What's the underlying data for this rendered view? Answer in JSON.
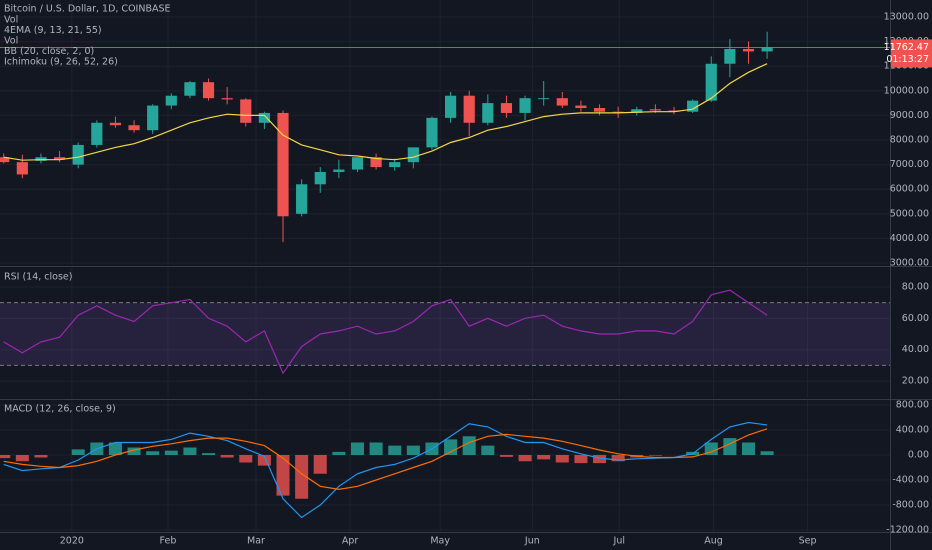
{
  "chart_data": [
    {
      "type": "candlestick",
      "title": "Bitcoin / U.S. Dollar, 1D, COINBASE",
      "indicators": [
        "Vol",
        "4EMA (9, 13, 21, 55)",
        "Vol",
        "BB (20, close, 2, 0)",
        "Ichimoku (9, 26, 52, 26)"
      ],
      "up_color": "#26a69a",
      "down_color": "#ef5350",
      "open": [
        7300,
        7100,
        7150,
        7300,
        7000,
        7800,
        8700,
        8600,
        8400,
        9400,
        9800,
        10350,
        9700,
        9650,
        8700,
        9100,
        5000,
        6200,
        6700,
        6800,
        7300,
        6900,
        7100,
        7700,
        8900,
        9800,
        8700,
        9500,
        9100,
        9700,
        9700,
        9400,
        9300,
        9150,
        9100,
        9250,
        9200,
        9150,
        9600,
        11100,
        11700,
        11600
      ],
      "high": [
        7450,
        7400,
        7450,
        7550,
        7900,
        8800,
        8950,
        8800,
        9450,
        9900,
        10400,
        10500,
        10150,
        9700,
        9150,
        9200,
        6400,
        6900,
        7200,
        7300,
        7450,
        7250,
        7700,
        8950,
        9950,
        10000,
        9850,
        9800,
        9800,
        10400,
        9950,
        9600,
        9450,
        9350,
        9350,
        9450,
        9350,
        9650,
        11400,
        12100,
        12000,
        12400
      ],
      "low": [
        7050,
        6450,
        7050,
        7100,
        6850,
        7700,
        8500,
        8300,
        8250,
        9250,
        9700,
        9600,
        9450,
        8550,
        8450,
        3850,
        4900,
        5850,
        6450,
        6700,
        6800,
        6750,
        6850,
        7600,
        8700,
        8150,
        8600,
        8900,
        8800,
        9400,
        9300,
        9150,
        9000,
        8900,
        9000,
        9100,
        9050,
        9100,
        9550,
        10550,
        11100,
        11300
      ],
      "close": [
        7100,
        6600,
        7300,
        7200,
        7800,
        8700,
        8600,
        8400,
        9400,
        9800,
        10350,
        9700,
        9650,
        8700,
        9100,
        4900,
        6200,
        6700,
        6800,
        7300,
        6900,
        7100,
        7700,
        8900,
        9800,
        8700,
        9500,
        9100,
        9700,
        9700,
        9400,
        9300,
        9150,
        9100,
        9250,
        9200,
        9150,
        9600,
        11100,
        11700,
        11600,
        11762
      ],
      "series": [
        {
          "color": "#f5d742",
          "values": [
            7300,
            7180,
            7200,
            7200,
            7300,
            7500,
            7700,
            7850,
            8100,
            8400,
            8700,
            8900,
            9050,
            9000,
            9000,
            8200,
            7800,
            7600,
            7400,
            7350,
            7250,
            7200,
            7300,
            7550,
            7900,
            8100,
            8400,
            8550,
            8750,
            8950,
            9050,
            9100,
            9100,
            9100,
            9130,
            9150,
            9150,
            9250,
            9700,
            10300,
            10750,
            11100
          ]
        }
      ],
      "last_price": 11762.47,
      "countdown": "01:13:27",
      "ylim": [
        2920,
        13690
      ],
      "yticks": [
        {
          "value": 3000,
          "label": "3000.00"
        },
        {
          "value": 4000,
          "label": "4000.00"
        },
        {
          "value": 5000,
          "label": "5000.00"
        },
        {
          "value": 6000,
          "label": "6000.00"
        },
        {
          "value": 7000,
          "label": "7000.00"
        },
        {
          "value": 8000,
          "label": "8000.00"
        },
        {
          "value": 9000,
          "label": "9000.00"
        },
        {
          "value": 10000,
          "label": "10000.00"
        },
        {
          "value": 11000,
          "label": "11000.00"
        },
        {
          "value": 12000,
          "label": "12000.00"
        },
        {
          "value": 13000,
          "label": "13000.00"
        }
      ],
      "xlim": [
        -0.2,
        47.6
      ],
      "xticks": [
        {
          "value": 3.66,
          "label": "2020"
        },
        {
          "value": 8.82,
          "label": "Feb"
        },
        {
          "value": 13.55,
          "label": "Mar"
        },
        {
          "value": 18.6,
          "label": "Apr"
        },
        {
          "value": 23.44,
          "label": "May"
        },
        {
          "value": 28.39,
          "label": "Jun"
        },
        {
          "value": 33.06,
          "label": "Jul"
        },
        {
          "value": 38.12,
          "label": "Aug"
        },
        {
          "value": 43.17,
          "label": "Sep"
        }
      ],
      "grid": true
    },
    {
      "type": "line",
      "title": "RSI (14, close)",
      "series": [
        {
          "color": "#9c27b0",
          "values": [
            45,
            38,
            45,
            48,
            62,
            68,
            62,
            58,
            68,
            70,
            72,
            60,
            55,
            45,
            52,
            25,
            42,
            50,
            52,
            55,
            50,
            52,
            58,
            68,
            72,
            55,
            60,
            55,
            60,
            62,
            55,
            52,
            50,
            50,
            52,
            52,
            50,
            58,
            75,
            78,
            70,
            62
          ]
        }
      ],
      "upper_band": 70,
      "lower_band": 30,
      "band_color": "#7e57c2",
      "ylim": [
        9.2,
        92.1
      ],
      "yticks": [
        {
          "value": 20,
          "label": "20.00"
        },
        {
          "value": 40,
          "label": "40.00"
        },
        {
          "value": 60,
          "label": "60.00"
        },
        {
          "value": 80,
          "label": "80.00"
        }
      ],
      "grid": true
    },
    {
      "type": "macd",
      "title": "MACD (12, 26, close, 9)",
      "color_up": "#26a69a",
      "color_down": "#ef5350",
      "histogram": [
        -50,
        -100,
        -40,
        0,
        90,
        200,
        200,
        120,
        60,
        70,
        120,
        30,
        -40,
        -120,
        -170,
        -650,
        -700,
        -300,
        50,
        200,
        200,
        150,
        150,
        200,
        250,
        300,
        150,
        -30,
        -100,
        -70,
        -120,
        -130,
        -130,
        -100,
        -40,
        -10,
        0,
        50,
        200,
        270,
        200,
        60
      ],
      "series": [
        {
          "color": "#2196f3",
          "values": [
            -150,
            -250,
            -220,
            -200,
            -80,
            100,
            200,
            200,
            200,
            250,
            350,
            300,
            230,
            100,
            -20,
            -700,
            -1000,
            -800,
            -500,
            -300,
            -200,
            -150,
            -50,
            100,
            300,
            500,
            450,
            300,
            200,
            200,
            100,
            20,
            -50,
            -80,
            -60,
            -50,
            -40,
            20,
            250,
            450,
            520,
            480
          ]
        },
        {
          "color": "#ff6d00",
          "values": [
            -100,
            -150,
            -180,
            -200,
            -170,
            -100,
            0,
            80,
            140,
            180,
            230,
            270,
            270,
            220,
            150,
            -50,
            -300,
            -500,
            -550,
            -500,
            -400,
            -300,
            -200,
            -100,
            50,
            200,
            300,
            330,
            300,
            270,
            220,
            150,
            80,
            20,
            -20,
            -40,
            -40,
            -30,
            50,
            180,
            320,
            420
          ]
        }
      ],
      "ylim": [
        -1232,
        880
      ],
      "yticks": [
        {
          "value": -1200,
          "label": "-1200.00"
        },
        {
          "value": -800,
          "label": "-800.00"
        },
        {
          "value": -400,
          "label": "-400.00"
        },
        {
          "value": 0,
          "label": "0.00"
        },
        {
          "value": 400,
          "label": "400.00"
        },
        {
          "value": 800,
          "label": "800.00"
        }
      ],
      "grid": true
    }
  ]
}
